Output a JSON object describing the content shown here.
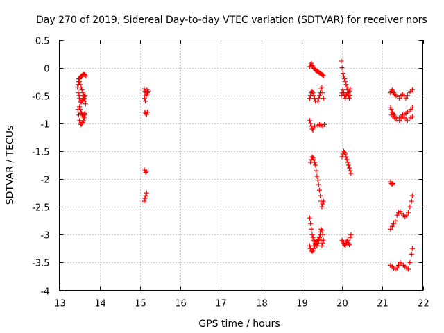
{
  "chart_data": {
    "type": "scatter",
    "title": "Day 270 of 2019, Sidereal Day-to-day VTEC variation (SDTVAR) for receiver nors",
    "xlabel": "GPS time / hours",
    "ylabel": "SDTVAR / TECUs",
    "xlim": [
      13,
      22
    ],
    "ylim": [
      -4,
      0.5
    ],
    "xticks": [
      13,
      14,
      15,
      16,
      17,
      18,
      19,
      20,
      21,
      22
    ],
    "yticks": [
      0.5,
      0,
      -0.5,
      -1,
      -1.5,
      -2,
      -2.5,
      -3,
      -3.5,
      -4
    ],
    "xtick_labels": [
      "13",
      "14",
      "15",
      "16",
      "17",
      "18",
      "19",
      "20",
      "21",
      "22"
    ],
    "ytick_labels": [
      "0.5",
      "0",
      "-0.5",
      "-1",
      "-1.5",
      "-2",
      "-2.5",
      "-3",
      "-3.5",
      "-4"
    ],
    "grid": true,
    "marker": "+",
    "color": "#ff0000",
    "series": [
      {
        "name": "sdtvar",
        "x": [
          13.45,
          13.47,
          13.48,
          13.5,
          13.52,
          13.54,
          13.56,
          13.58,
          13.6,
          13.62,
          13.64,
          13.66,
          13.47,
          13.49,
          13.5,
          13.52,
          13.54,
          13.56,
          13.58,
          13.6,
          13.62,
          13.64,
          13.5,
          13.52,
          13.54,
          13.55,
          13.57,
          13.59,
          13.61,
          13.63,
          13.46,
          13.48,
          13.5,
          13.52,
          13.54,
          13.56,
          13.58,
          13.6,
          13.62,
          13.64,
          13.48,
          13.5,
          13.52,
          13.54,
          13.56,
          13.58,
          13.6,
          13.62,
          13.64,
          13.65,
          15.1,
          15.12,
          15.14,
          15.16,
          15.18,
          15.2,
          15.11,
          15.13,
          15.15,
          15.17,
          15.12,
          15.14,
          15.16,
          15.18,
          15.1,
          15.12,
          15.14,
          15.16,
          15.1,
          15.12,
          15.14,
          15.16,
          19.2,
          19.22,
          19.24,
          19.26,
          19.28,
          19.3,
          19.32,
          19.34,
          19.36,
          19.38,
          19.4,
          19.42,
          19.44,
          19.46,
          19.48,
          19.5,
          19.52,
          19.54,
          19.2,
          19.22,
          19.24,
          19.26,
          19.28,
          19.3,
          19.32,
          19.34,
          19.4,
          19.42,
          19.44,
          19.46,
          19.48,
          19.5,
          19.52,
          19.54,
          19.2,
          19.22,
          19.24,
          19.26,
          19.28,
          19.3,
          19.32,
          19.4,
          19.44,
          19.48,
          19.52,
          19.56,
          19.22,
          19.24,
          19.26,
          19.28,
          19.3,
          19.32,
          19.34,
          19.36,
          19.38,
          19.4,
          19.42,
          19.44,
          19.46,
          19.48,
          19.5,
          19.52,
          19.54,
          19.2,
          19.22,
          19.24,
          19.26,
          19.28,
          19.3,
          19.32,
          19.34,
          19.36,
          19.38,
          19.4,
          19.42,
          19.44,
          19.46,
          19.48,
          19.5,
          19.52,
          19.54,
          19.2,
          19.22,
          19.24,
          19.26,
          19.28,
          19.3,
          19.32,
          19.34,
          19.36,
          19.38,
          19.4,
          19.42,
          19.44,
          19.46,
          19.48,
          19.5,
          19.52,
          19.98,
          20.0,
          20.02,
          20.04,
          20.06,
          20.08,
          20.1,
          20.12,
          20.14,
          20.16,
          20.18,
          20.2,
          19.98,
          20.0,
          20.02,
          20.04,
          20.06,
          20.08,
          20.1,
          20.12,
          20.14,
          20.16,
          20.18,
          20.2,
          20.0,
          20.02,
          20.04,
          20.06,
          20.08,
          20.1,
          20.12,
          20.14,
          20.16,
          20.18,
          20.2,
          20.22,
          20.0,
          20.02,
          20.04,
          20.06,
          20.08,
          20.1,
          20.12,
          20.14,
          20.16,
          20.18,
          20.2,
          20.22,
          21.2,
          21.22,
          21.24,
          21.26,
          21.28,
          21.3,
          21.34,
          21.38,
          21.42,
          21.46,
          21.5,
          21.54,
          21.58,
          21.62,
          21.66,
          21.7,
          21.74,
          21.2,
          21.22,
          21.24,
          21.26,
          21.28,
          21.3,
          21.34,
          21.38,
          21.42,
          21.46,
          21.5,
          21.54,
          21.58,
          21.62,
          21.66,
          21.7,
          21.74,
          21.22,
          21.26,
          21.3,
          21.34,
          21.38,
          21.42,
          21.46,
          21.5,
          21.54,
          21.58,
          21.62,
          21.66,
          21.7,
          21.74,
          21.2,
          21.22,
          21.24,
          21.26,
          21.2,
          21.24,
          21.28,
          21.32,
          21.36,
          21.4,
          21.44,
          21.48,
          21.52,
          21.56,
          21.6,
          21.64,
          21.68,
          21.72,
          21.74,
          21.2,
          21.24,
          21.28,
          21.32,
          21.36,
          21.4,
          21.44,
          21.48,
          21.52,
          21.56,
          21.6,
          21.64,
          21.68,
          21.72,
          21.74
        ],
        "y": [
          -0.35,
          -0.3,
          -0.25,
          -0.2,
          -0.17,
          -0.15,
          -0.14,
          -0.13,
          -0.12,
          -0.12,
          -0.13,
          -0.15,
          -0.45,
          -0.5,
          -0.55,
          -0.6,
          -0.62,
          -0.6,
          -0.58,
          -0.55,
          -0.52,
          -0.5,
          -0.7,
          -0.75,
          -0.8,
          -0.82,
          -0.85,
          -0.88,
          -0.85,
          -0.82,
          -0.75,
          -0.85,
          -0.95,
          -1.0,
          -1.02,
          -1.0,
          -0.98,
          -0.95,
          -0.9,
          -0.85,
          -0.2,
          -0.25,
          -0.3,
          -0.35,
          -0.4,
          -0.45,
          -0.5,
          -0.55,
          -0.6,
          -0.65,
          -0.38,
          -0.42,
          -0.45,
          -0.48,
          -0.45,
          -0.42,
          -0.55,
          -0.6,
          -0.5,
          -0.4,
          -0.8,
          -0.82,
          -0.84,
          -0.8,
          -1.82,
          -1.85,
          -1.88,
          -1.86,
          -2.4,
          -2.35,
          -2.3,
          -2.25,
          0.02,
          0.05,
          0.08,
          0.04,
          0.02,
          -0.01,
          -0.02,
          -0.04,
          -0.05,
          -0.06,
          -0.07,
          -0.08,
          -0.09,
          -0.1,
          -0.11,
          -0.12,
          -0.13,
          -0.14,
          -0.55,
          -0.5,
          -0.45,
          -0.42,
          -0.45,
          -0.5,
          -0.55,
          -0.6,
          -0.6,
          -0.55,
          -0.5,
          -0.45,
          -0.38,
          -0.35,
          -0.45,
          -0.55,
          -0.95,
          -1.0,
          -1.05,
          -1.1,
          -1.12,
          -1.08,
          -1.05,
          -1.03,
          -1.02,
          -1.03,
          -1.05,
          -1.02,
          -1.7,
          -1.65,
          -1.6,
          -1.62,
          -1.65,
          -1.7,
          -1.75,
          -1.85,
          -1.95,
          -2.02,
          -2.1,
          -2.2,
          -2.3,
          -2.4,
          -2.5,
          -2.45,
          -2.4,
          -2.7,
          -2.8,
          -2.9,
          -3.0,
          -3.05,
          -3.1,
          -3.12,
          -3.15,
          -3.18,
          -3.2,
          -3.15,
          -3.1,
          -3.05,
          -3.0,
          -3.1,
          -3.2,
          -3.15,
          -3.1,
          -3.2,
          -3.25,
          -3.28,
          -3.3,
          -3.28,
          -3.25,
          -3.2,
          -3.18,
          -3.15,
          -3.12,
          -3.1,
          -3.08,
          -3.05,
          -2.95,
          -2.9,
          -2.92,
          -3.0,
          0.12,
          0.0,
          -0.1,
          -0.15,
          -0.2,
          -0.25,
          -0.3,
          -0.35,
          -0.4,
          -0.45,
          -0.42,
          -0.38,
          -0.5,
          -0.45,
          -0.4,
          -0.45,
          -0.5,
          -0.55,
          -0.5,
          -0.48,
          -0.45,
          -0.5,
          -0.55,
          -0.5,
          -1.6,
          -1.55,
          -1.5,
          -1.52,
          -1.55,
          -1.6,
          -1.65,
          -1.7,
          -1.75,
          -1.8,
          -1.85,
          -1.9,
          -3.1,
          -3.12,
          -3.15,
          -3.18,
          -3.2,
          -3.15,
          -3.12,
          -3.1,
          -3.15,
          -3.18,
          -3.05,
          -3.0,
          -0.45,
          -0.42,
          -0.4,
          -0.42,
          -0.45,
          -0.48,
          -0.5,
          -0.52,
          -0.55,
          -0.5,
          -0.48,
          -0.5,
          -0.55,
          -0.5,
          -0.45,
          -0.42,
          -0.4,
          -0.72,
          -0.75,
          -0.8,
          -0.82,
          -0.85,
          -0.88,
          -0.9,
          -0.92,
          -0.95,
          -0.92,
          -0.88,
          -0.85,
          -0.82,
          -0.8,
          -0.78,
          -0.75,
          -0.72,
          -0.85,
          -0.88,
          -0.9,
          -0.92,
          -0.95,
          -0.9,
          -0.88,
          -0.85,
          -0.9,
          -0.92,
          -0.95,
          -0.92,
          -0.9,
          -0.88,
          -2.05,
          -2.08,
          -2.1,
          -2.08,
          -2.9,
          -2.85,
          -2.8,
          -2.75,
          -2.65,
          -2.6,
          -2.58,
          -2.62,
          -2.65,
          -2.68,
          -2.65,
          -2.6,
          -2.5,
          -2.4,
          -2.3,
          -3.55,
          -3.58,
          -3.6,
          -3.62,
          -3.6,
          -3.55,
          -3.5,
          -3.52,
          -3.55,
          -3.58,
          -3.6,
          -3.62,
          -3.5,
          -3.35,
          -3.25
        ]
      }
    ]
  }
}
